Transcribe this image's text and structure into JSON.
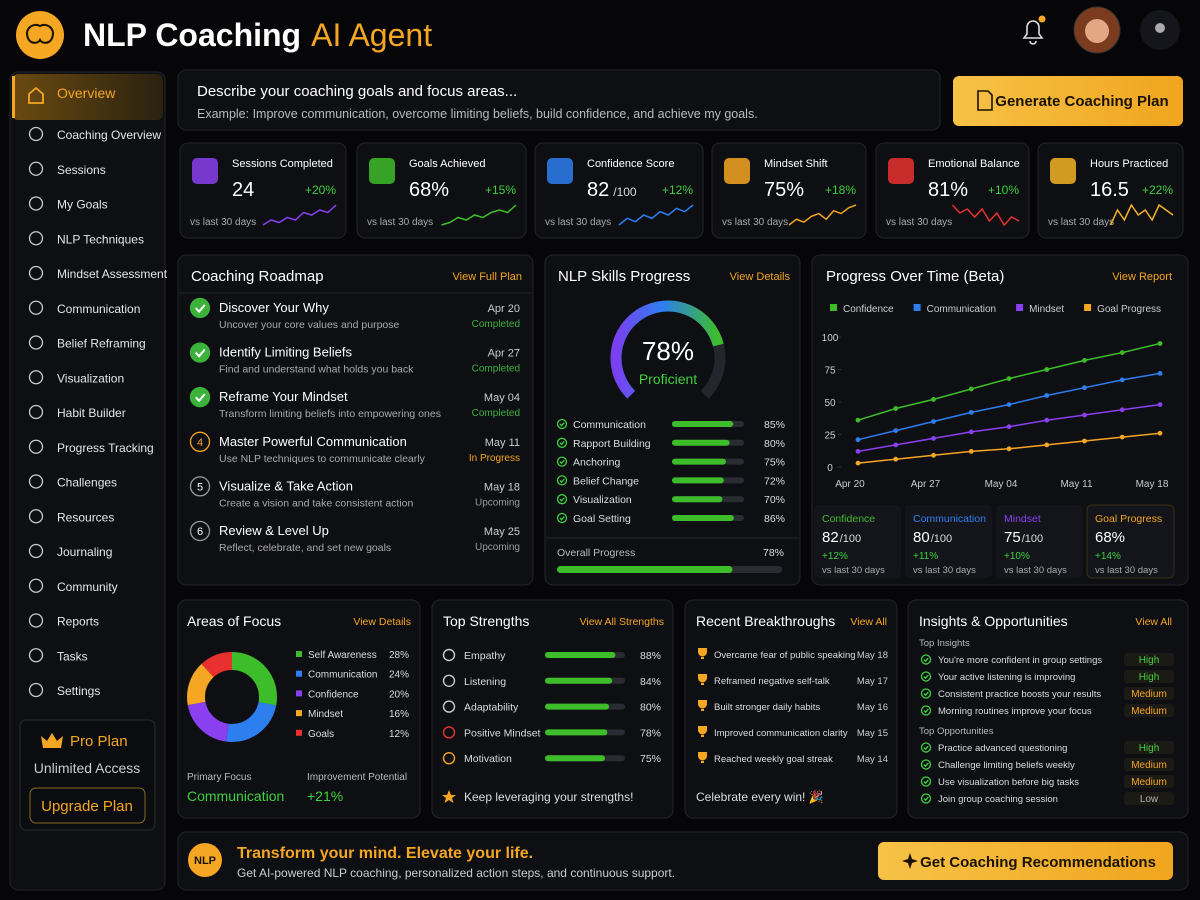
{
  "header": {
    "title": "NLP Coaching",
    "title_accent": "AI Agent"
  },
  "sidebar": {
    "nav": [
      "Overview",
      "Coaching Overview",
      "Sessions",
      "My Goals",
      "NLP Techniques",
      "Mindset Assessment",
      "Communication",
      "Belief Reframing",
      "Visualization",
      "Habit Builder",
      "Progress Tracking",
      "Challenges",
      "Resources",
      "Journaling",
      "Community",
      "Reports",
      "Tasks",
      "Settings"
    ],
    "plan": {
      "title": "Pro Plan",
      "subtitle": "Unlimited Access",
      "button": "Upgrade Plan"
    }
  },
  "prompt": {
    "title": "Describe your coaching goals and focus areas...",
    "example": "Example: Improve communication, overcome limiting beliefs, build confidence, and achieve my goals.",
    "button": "Generate Coaching Plan"
  },
  "stats": [
    {
      "label": "Sessions Completed",
      "value": "24",
      "change": "+20%",
      "note": "vs last 30 days",
      "color": "#8a3ff0",
      "trend": [
        3,
        5,
        4,
        6,
        5,
        8,
        7,
        9,
        8,
        11
      ]
    },
    {
      "label": "Goals Achieved",
      "value": "68%",
      "change": "+15%",
      "note": "vs last 30 days",
      "color": "#3dbd2a",
      "trend": [
        2,
        3,
        5,
        4,
        6,
        5,
        7,
        8,
        7,
        10
      ]
    },
    {
      "label": "Confidence Score",
      "value": "82",
      "unit": "/100",
      "change": "+12%",
      "note": "vs last 30 days",
      "color": "#2d7ff0",
      "trend": [
        4,
        6,
        5,
        7,
        6,
        8,
        7,
        9,
        8,
        10
      ]
    },
    {
      "label": "Mindset Shift",
      "value": "75%",
      "change": "+18%",
      "note": "vs last 30 days",
      "color": "#f5a623",
      "trend": [
        3,
        5,
        4,
        6,
        7,
        5,
        8,
        7,
        9,
        10
      ]
    },
    {
      "label": "Emotional Balance",
      "value": "81%",
      "change": "+10%",
      "note": "vs last 30 days",
      "color": "#e8312f",
      "trend": [
        9,
        7,
        8,
        6,
        8,
        5,
        7,
        4,
        6,
        5
      ]
    },
    {
      "label": "Hours Practiced",
      "value": "16.5",
      "change": "+22%",
      "note": "vs last 30 days",
      "color": "#f5b323",
      "trend": [
        5,
        8,
        6,
        9,
        7,
        8,
        6,
        9,
        8,
        7
      ]
    }
  ],
  "roadmap": {
    "title": "Coaching Roadmap",
    "link": "View Full Plan",
    "steps": [
      {
        "title": "Discover Your Why",
        "desc": "Uncover your core values and purpose",
        "date": "Apr 20",
        "status": "Completed",
        "color": "#3bb33b"
      },
      {
        "title": "Identify Limiting Beliefs",
        "desc": "Find and understand what holds you back",
        "date": "Apr 27",
        "status": "Completed",
        "color": "#3bb33b"
      },
      {
        "title": "Reframe Your Mindset",
        "desc": "Transform limiting beliefs into empowering ones",
        "date": "May 04",
        "status": "Completed",
        "color": "#3bb33b"
      },
      {
        "number": "4",
        "title": "Master Powerful Communication",
        "desc": "Use NLP techniques to communicate clearly",
        "date": "May 11",
        "status": "In Progress",
        "color": "#f5a623"
      },
      {
        "number": "5",
        "title": "Visualize & Take Action",
        "desc": "Create a vision and take consistent action",
        "date": "May 18",
        "status": "Upcoming",
        "color": "#9a9aa0"
      },
      {
        "number": "6",
        "title": "Review & Level Up",
        "desc": "Reflect, celebrate, and set new goals",
        "date": "May 25",
        "status": "Upcoming",
        "color": "#9a9aa0"
      }
    ]
  },
  "skills": {
    "title": "NLP Skills Progress",
    "link": "View Details",
    "gauge": {
      "value": 78,
      "value_label": "78%",
      "label": "Proficient"
    },
    "items": [
      {
        "name": "Communication",
        "value": 85,
        "label": "85%"
      },
      {
        "name": "Rapport Building",
        "value": 80,
        "label": "80%"
      },
      {
        "name": "Anchoring",
        "value": 75,
        "label": "75%"
      },
      {
        "name": "Belief Change",
        "value": 72,
        "label": "72%"
      },
      {
        "name": "Visualization",
        "value": 70,
        "label": "70%"
      },
      {
        "name": "Goal Setting",
        "value": 86,
        "label": "86%"
      }
    ],
    "overall": {
      "label": "Overall Progress",
      "value": 78,
      "value_label": "78%"
    }
  },
  "progress": {
    "title": "Progress Over Time (Beta)",
    "link": "View Report",
    "chart": {
      "type": "line",
      "categories": [
        "Apr 20",
        null,
        "Apr 27",
        null,
        "May 04",
        null,
        "May 11",
        null,
        "May 18"
      ],
      "ylim": [
        0,
        100
      ],
      "yticks": [
        0,
        25,
        50,
        75,
        100
      ],
      "series": [
        {
          "name": "Confidence",
          "color": "#3dbd2a",
          "values": [
            36,
            45,
            52,
            60,
            68,
            75,
            82,
            88,
            95
          ]
        },
        {
          "name": "Communication",
          "color": "#2d7ff0",
          "values": [
            21,
            28,
            35,
            42,
            48,
            55,
            61,
            67,
            72
          ]
        },
        {
          "name": "Mindset",
          "color": "#8a3ff0",
          "values": [
            12,
            17,
            22,
            27,
            31,
            36,
            40,
            44,
            48
          ]
        },
        {
          "name": "Goal Progress",
          "color": "#f5a623",
          "values": [
            3,
            6,
            9,
            12,
            14,
            17,
            20,
            23,
            26
          ]
        }
      ]
    },
    "summary": [
      {
        "name": "Confidence",
        "value": "82",
        "unit": "/100",
        "change": "+12%",
        "note": "vs last 30 days"
      },
      {
        "name": "Communication",
        "value": "80",
        "unit": "/100",
        "change": "+11%",
        "note": "vs last 30 days"
      },
      {
        "name": "Mindset",
        "value": "75",
        "unit": "/100",
        "change": "+10%",
        "note": "vs last 30 days"
      },
      {
        "name": "Goal Progress",
        "value": "68%",
        "change": "+14%",
        "note": "vs last 30 days"
      }
    ]
  },
  "areas": {
    "title": "Areas of Focus",
    "link": "View Details",
    "chart": {
      "type": "pie",
      "series": [
        {
          "name": "Self Awareness",
          "value": 28,
          "label": "28%",
          "color": "#3dbd2a"
        },
        {
          "name": "Communication",
          "value": 24,
          "label": "24%",
          "color": "#2d7ff0"
        },
        {
          "name": "Confidence",
          "value": 20,
          "label": "20%",
          "color": "#8a3ff0"
        },
        {
          "name": "Mindset",
          "value": 16,
          "label": "16%",
          "color": "#f5a623"
        },
        {
          "name": "Goals",
          "value": 12,
          "label": "12%",
          "color": "#e8312f"
        }
      ]
    },
    "primary": {
      "label": "Primary Focus",
      "value": "Communication"
    },
    "improvement": {
      "label": "Improvement Potential",
      "value": "+21%"
    }
  },
  "strengths": {
    "title": "Top Strengths",
    "link": "View All Strengths",
    "items": [
      {
        "name": "Empathy",
        "value": 88,
        "label": "88%"
      },
      {
        "name": "Listening",
        "value": 84,
        "label": "84%"
      },
      {
        "name": "Adaptability",
        "value": 80,
        "label": "80%"
      },
      {
        "name": "Positive Mindset",
        "value": 78,
        "label": "78%"
      },
      {
        "name": "Motivation",
        "value": 75,
        "label": "75%"
      }
    ],
    "footer": "Keep leveraging your strengths!"
  },
  "breakthroughs": {
    "title": "Recent Breakthroughs",
    "link": "View All",
    "items": [
      {
        "text": "Overcame fear of public speaking",
        "date": "May 18"
      },
      {
        "text": "Reframed negative self-talk",
        "date": "May 17"
      },
      {
        "text": "Built stronger daily habits",
        "date": "May 16"
      },
      {
        "text": "Improved communication clarity",
        "date": "May 15"
      },
      {
        "text": "Reached weekly goal streak",
        "date": "May 14"
      }
    ],
    "footer": "Celebrate every win! 🎉"
  },
  "insights": {
    "title": "Insights & Opportunities",
    "link": "View All",
    "sections": [
      {
        "title": "Top Insights",
        "items": [
          {
            "text": "You're more confident in group settings",
            "level": "High",
            "color": "#3dd13d"
          },
          {
            "text": "Your active listening is improving",
            "level": "High",
            "color": "#3dd13d"
          },
          {
            "text": "Consistent practice boosts your results",
            "level": "Medium",
            "color": "#f5a623"
          },
          {
            "text": "Morning routines improve your focus",
            "level": "Medium",
            "color": "#f5a623"
          }
        ]
      },
      {
        "title": "Top Opportunities",
        "items": [
          {
            "text": "Practice advanced questioning",
            "level": "High",
            "color": "#3dd13d"
          },
          {
            "text": "Challenge limiting beliefs weekly",
            "level": "Medium",
            "color": "#f5a623"
          },
          {
            "text": "Use visualization before big tasks",
            "level": "Medium",
            "color": "#f5a623"
          },
          {
            "text": "Join group coaching session",
            "level": "Low",
            "color": "#b0b0b5"
          }
        ]
      }
    ]
  },
  "banner": {
    "badge": "NLP",
    "title": "Transform your mind. Elevate your life.",
    "subtitle": "Get AI-powered NLP coaching, personalized action steps, and continuous support.",
    "button": "Get Coaching Recommendations"
  }
}
